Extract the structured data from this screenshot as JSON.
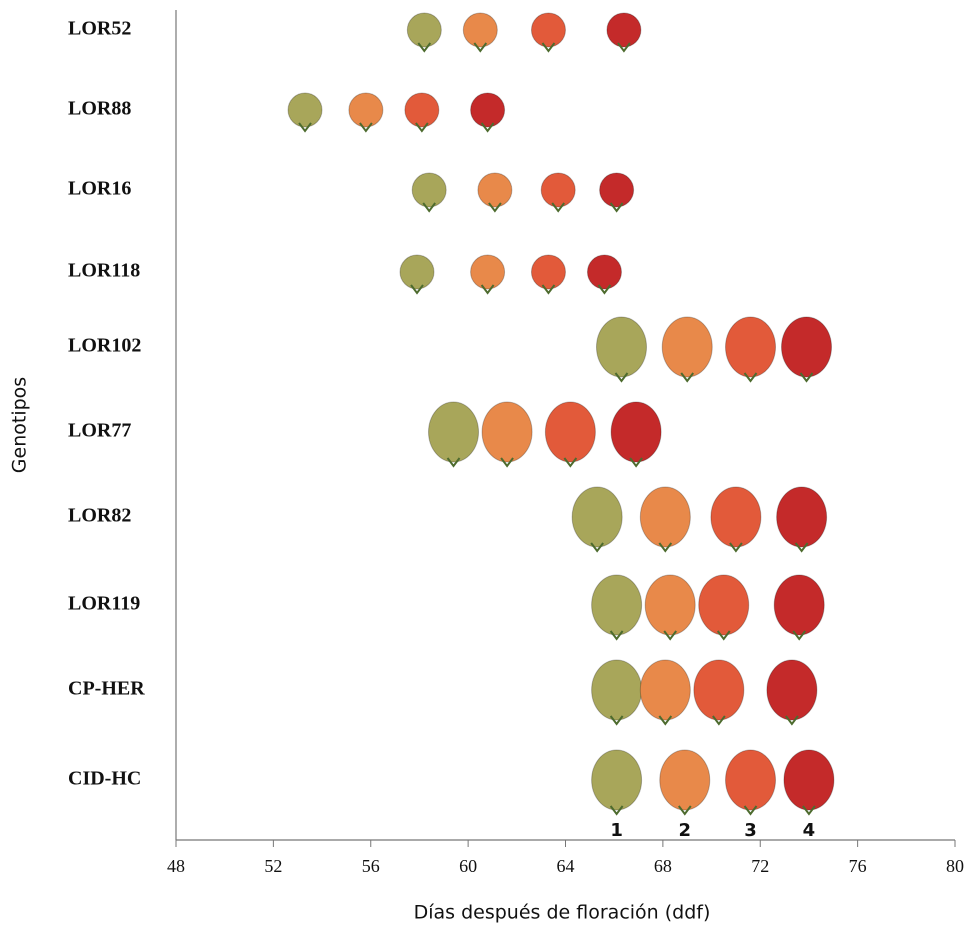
{
  "chart_data": {
    "type": "dot",
    "x_label": "Días después de floración (ddf)",
    "y_label": "Genotipos",
    "categories": [
      "LOR52",
      "LOR88",
      "LOR16",
      "LOR118",
      "LOR102",
      "LOR77",
      "LOR82",
      "LOR119",
      "CP-HER",
      "CID-HC"
    ],
    "xlim": [
      48,
      80
    ],
    "xticks": [
      48,
      52,
      56,
      60,
      64,
      68,
      72,
      76,
      80
    ],
    "series": [
      {
        "name": "1",
        "color": "#a8a65a",
        "values": [
          58.2,
          53.3,
          58.4,
          57.9,
          66.3,
          59.4,
          65.3,
          66.1,
          66.1,
          66.1
        ]
      },
      {
        "name": "2",
        "color": "#e8894a",
        "values": [
          60.5,
          55.8,
          61.1,
          60.8,
          69.0,
          61.6,
          68.1,
          68.3,
          68.1,
          68.9
        ]
      },
      {
        "name": "3",
        "color": "#e25a3a",
        "values": [
          63.3,
          58.1,
          63.7,
          63.3,
          71.6,
          64.2,
          71.0,
          70.5,
          70.3,
          71.6
        ]
      },
      {
        "name": "4",
        "color": "#c42a2a",
        "values": [
          66.4,
          60.8,
          66.1,
          65.6,
          73.9,
          66.9,
          73.7,
          73.6,
          73.3,
          74.0
        ]
      }
    ]
  }
}
